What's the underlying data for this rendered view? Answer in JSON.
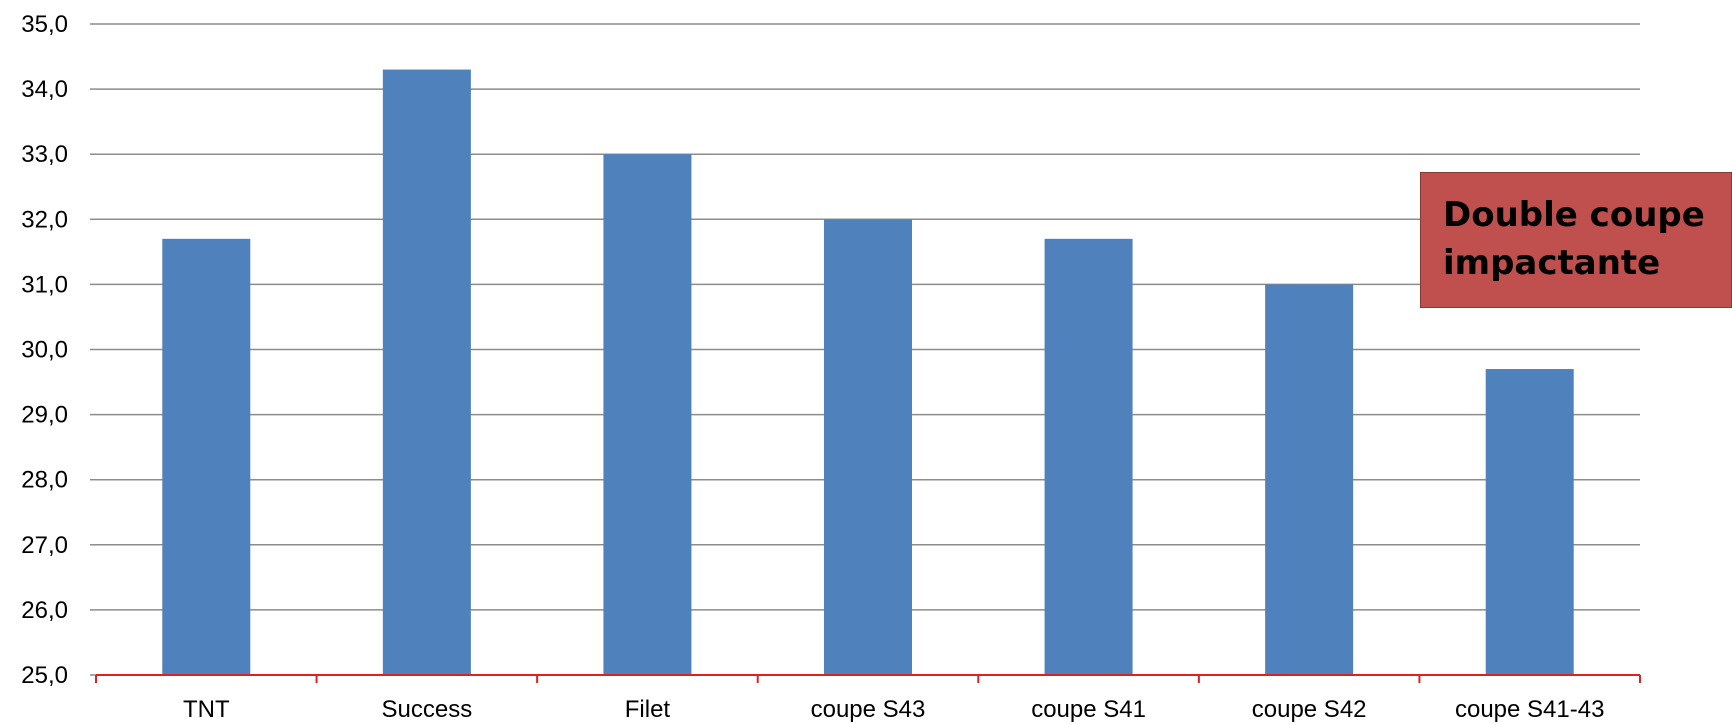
{
  "chart_data": {
    "type": "bar",
    "categories": [
      "TNT",
      "Success",
      "Filet",
      "coupe S43",
      "coupe S41",
      "coupe S42",
      "coupe S41-43"
    ],
    "values": [
      31.7,
      34.3,
      33.0,
      32.0,
      31.7,
      31.0,
      29.7
    ],
    "title": "",
    "xlabel": "",
    "ylabel": "",
    "ylim": [
      25,
      35
    ],
    "yticks": [
      "25,0",
      "26,0",
      "27,0",
      "28,0",
      "29,0",
      "30,0",
      "31,0",
      "32,0",
      "33,0",
      "34,0",
      "35,0"
    ],
    "grid": true,
    "bar_color": "#4f81bd",
    "baseline_color": "#e02020",
    "annotation": {
      "text": "Double coupe\nimpactante",
      "background": "#c0504d"
    }
  }
}
